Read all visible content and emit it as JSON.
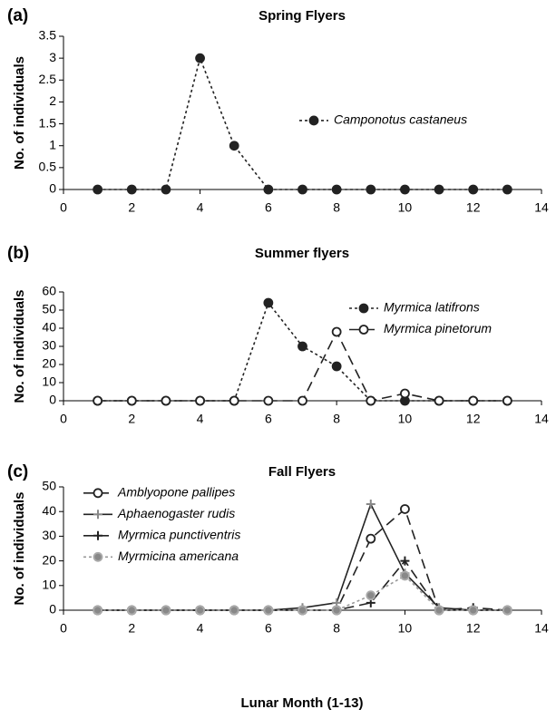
{
  "chart_data": [
    {
      "type": "line",
      "panel_label": "(a)",
      "title": "Spring Flyers",
      "y_label": "No. of individuals",
      "x": [
        1,
        2,
        3,
        4,
        5,
        6,
        7,
        8,
        9,
        10,
        11,
        12,
        13
      ],
      "series": [
        {
          "name": "Camponotus castaneus",
          "color": "#222222",
          "dash": "dotted",
          "marker": "filled-circle",
          "values": [
            0,
            0,
            0,
            3,
            1,
            0,
            0,
            0,
            0,
            0,
            0,
            0,
            0
          ]
        }
      ],
      "xlim": [
        0,
        14
      ],
      "xticks": [
        0,
        2,
        4,
        6,
        8,
        10,
        12,
        14
      ],
      "ylim": [
        0,
        3.5
      ],
      "yticks": [
        0,
        0.5,
        1,
        1.5,
        2,
        2.5,
        3,
        3.5
      ],
      "legend": "right"
    },
    {
      "type": "line",
      "panel_label": "(b)",
      "title": "Summer flyers",
      "y_label": "No. of individuals",
      "x": [
        1,
        2,
        3,
        4,
        5,
        6,
        7,
        8,
        9,
        10,
        11,
        12,
        13
      ],
      "series": [
        {
          "name": "Myrmica latifrons",
          "color": "#222222",
          "dash": "dotted",
          "marker": "filled-circle",
          "values": [
            0,
            0,
            0,
            0,
            0,
            54,
            30,
            19,
            0,
            0,
            0,
            0,
            0
          ]
        },
        {
          "name": "Myrmica pinetorum",
          "color": "#222222",
          "dash": "dashed",
          "marker": "open-circle",
          "values": [
            0,
            0,
            0,
            0,
            0,
            0,
            0,
            38,
            0,
            4,
            0,
            0,
            0
          ]
        }
      ],
      "xlim": [
        0,
        14
      ],
      "xticks": [
        0,
        2,
        4,
        6,
        8,
        10,
        12,
        14
      ],
      "ylim": [
        0,
        60
      ],
      "yticks": [
        0,
        10,
        20,
        30,
        40,
        50,
        60
      ],
      "legend": "upper right"
    },
    {
      "type": "line",
      "panel_label": "(c)",
      "title": "Fall Flyers",
      "y_label": "No. of individuals",
      "x_label": "Lunar Month (1-13)",
      "x": [
        1,
        2,
        3,
        4,
        5,
        6,
        7,
        8,
        9,
        10,
        11,
        12,
        13
      ],
      "series": [
        {
          "name": "Amblyopone pallipes",
          "color": "#222222",
          "dash": "dashed",
          "marker": "open-circle",
          "values": [
            0,
            0,
            0,
            0,
            0,
            0,
            0,
            0,
            29,
            41,
            0,
            0,
            0
          ]
        },
        {
          "name": "Aphaenogaster rudis",
          "color": "#222222",
          "dash": "solid",
          "marker": "gray-plus",
          "values": [
            0,
            0,
            0,
            0,
            0,
            0,
            1,
            3,
            43,
            15,
            1,
            0,
            0
          ]
        },
        {
          "name": "Myrmica punctiventris",
          "color": "#222222",
          "dash": "dashed",
          "marker": "plus",
          "values": [
            0,
            0,
            0,
            0,
            0,
            0,
            0,
            0,
            3,
            20,
            0,
            1,
            0
          ]
        },
        {
          "name": "Myrmicina americana",
          "color": "#999999",
          "dash": "dotted",
          "marker": "gray-circle",
          "values": [
            0,
            0,
            0,
            0,
            0,
            0,
            0,
            0,
            6,
            14,
            0,
            0,
            0
          ]
        }
      ],
      "xlim": [
        0,
        14
      ],
      "xticks": [
        0,
        2,
        4,
        6,
        8,
        10,
        12,
        14
      ],
      "ylim": [
        0,
        50
      ],
      "yticks": [
        0,
        10,
        20,
        30,
        40,
        50
      ],
      "legend": "upper left"
    }
  ]
}
